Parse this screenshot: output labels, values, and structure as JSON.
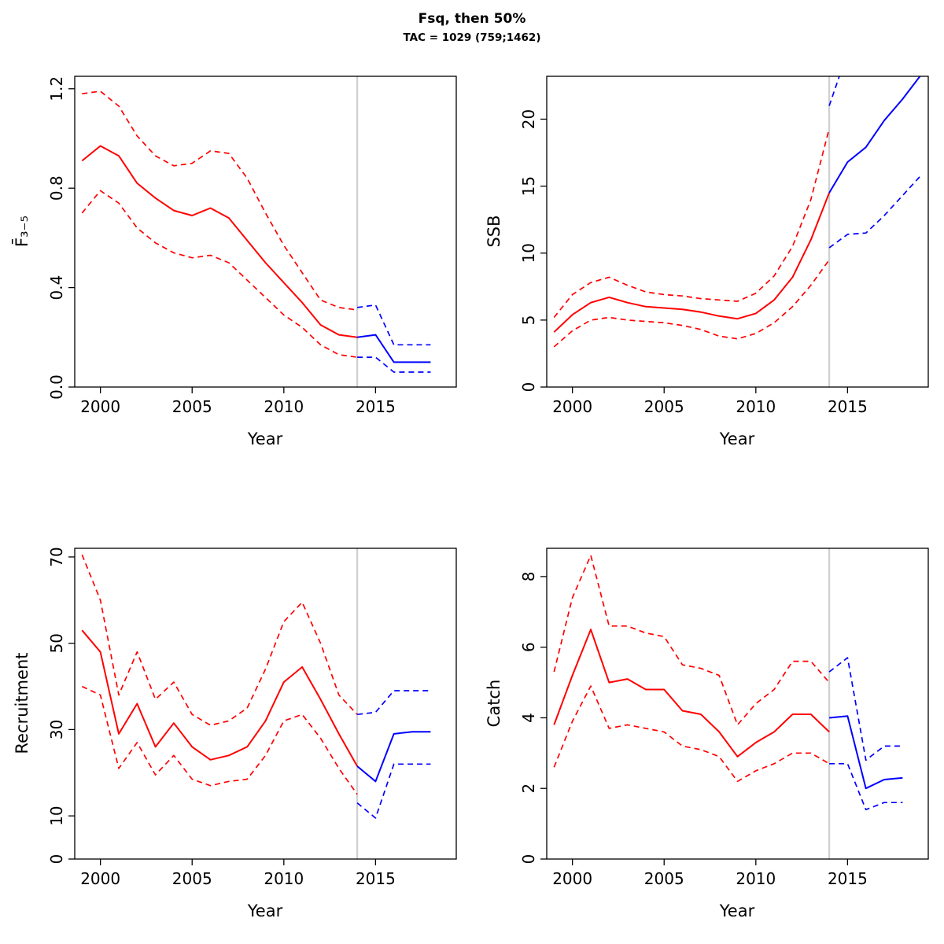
{
  "figure": {
    "title": "Fsq, then 50%",
    "subtitle": "TAC = 1029 (759;1462)"
  },
  "chart_data": [
    {
      "type": "line",
      "name": "fbar",
      "ylabel": "F̄₃₋₅",
      "xlabel": "Year",
      "xlim": [
        1998.6,
        2019.4
      ],
      "ylim": [
        0,
        1.25
      ],
      "xticks": [
        2000,
        2005,
        2010,
        2015
      ],
      "yticks": [
        0,
        0.4,
        0.8,
        1.2
      ],
      "ytick_labels": [
        "0.0",
        "0.4",
        "0.8",
        "1.2"
      ],
      "refline_x": 2014,
      "refline_color": "#CFCFCF",
      "grid": false,
      "legend": "none",
      "series": [
        {
          "name": "history-median",
          "color": "#FF0000",
          "dash": false,
          "x": [
            1999,
            2000,
            2001,
            2002,
            2003,
            2004,
            2005,
            2006,
            2007,
            2008,
            2009,
            2010,
            2011,
            2012,
            2013,
            2014
          ],
          "y": [
            0.91,
            0.97,
            0.93,
            0.82,
            0.76,
            0.71,
            0.69,
            0.72,
            0.68,
            0.59,
            0.5,
            0.42,
            0.34,
            0.25,
            0.21,
            0.2
          ]
        },
        {
          "name": "history-upper",
          "color": "#FF0000",
          "dash": true,
          "x": [
            1999,
            2000,
            2001,
            2002,
            2003,
            2004,
            2005,
            2006,
            2007,
            2008,
            2009,
            2010,
            2011,
            2012,
            2013,
            2014
          ],
          "y": [
            1.18,
            1.19,
            1.13,
            1.01,
            0.93,
            0.89,
            0.9,
            0.95,
            0.94,
            0.84,
            0.7,
            0.57,
            0.46,
            0.35,
            0.32,
            0.31
          ]
        },
        {
          "name": "history-lower",
          "color": "#FF0000",
          "dash": true,
          "x": [
            1999,
            2000,
            2001,
            2002,
            2003,
            2004,
            2005,
            2006,
            2007,
            2008,
            2009,
            2010,
            2011,
            2012,
            2013,
            2014
          ],
          "y": [
            0.7,
            0.79,
            0.74,
            0.64,
            0.58,
            0.54,
            0.52,
            0.53,
            0.5,
            0.43,
            0.36,
            0.29,
            0.24,
            0.17,
            0.13,
            0.12
          ]
        },
        {
          "name": "forecast-median",
          "color": "#0000FF",
          "dash": false,
          "x": [
            2014,
            2015,
            2016,
            2017,
            2018
          ],
          "y": [
            0.2,
            0.21,
            0.1,
            0.1,
            0.1
          ]
        },
        {
          "name": "forecast-upper",
          "color": "#0000FF",
          "dash": true,
          "x": [
            2014,
            2015,
            2016,
            2017,
            2018
          ],
          "y": [
            0.32,
            0.33,
            0.17,
            0.17,
            0.17
          ]
        },
        {
          "name": "forecast-lower",
          "color": "#0000FF",
          "dash": true,
          "x": [
            2014,
            2015,
            2016,
            2017,
            2018
          ],
          "y": [
            0.12,
            0.12,
            0.06,
            0.06,
            0.06
          ]
        }
      ]
    },
    {
      "type": "line",
      "name": "ssb",
      "ylabel": "SSB",
      "xlabel": "Year",
      "xlim": [
        1998.6,
        2019.4
      ],
      "ylim": [
        0,
        23.2
      ],
      "xticks": [
        2000,
        2005,
        2010,
        2015
      ],
      "yticks": [
        0,
        5,
        10,
        15,
        20
      ],
      "ytick_labels": [
        "0",
        "5",
        "10",
        "15",
        "20"
      ],
      "refline_x": 2014,
      "refline_color": "#CFCFCF",
      "grid": false,
      "legend": "none",
      "series": [
        {
          "name": "history-median",
          "color": "#FF0000",
          "dash": false,
          "x": [
            1999,
            2000,
            2001,
            2002,
            2003,
            2004,
            2005,
            2006,
            2007,
            2008,
            2009,
            2010,
            2011,
            2012,
            2013,
            2014
          ],
          "y": [
            4.1,
            5.4,
            6.3,
            6.7,
            6.3,
            6.0,
            5.9,
            5.8,
            5.6,
            5.3,
            5.1,
            5.5,
            6.5,
            8.2,
            11.0,
            14.5
          ]
        },
        {
          "name": "history-upper",
          "color": "#FF0000",
          "dash": true,
          "x": [
            1999,
            2000,
            2001,
            2002,
            2003,
            2004,
            2005,
            2006,
            2007,
            2008,
            2009,
            2010,
            2011,
            2012,
            2013,
            2014
          ],
          "y": [
            5.2,
            6.9,
            7.8,
            8.2,
            7.6,
            7.1,
            6.9,
            6.8,
            6.6,
            6.5,
            6.4,
            7.0,
            8.3,
            10.5,
            14.0,
            19.3
          ]
        },
        {
          "name": "history-lower",
          "color": "#FF0000",
          "dash": true,
          "x": [
            1999,
            2000,
            2001,
            2002,
            2003,
            2004,
            2005,
            2006,
            2007,
            2008,
            2009,
            2010,
            2011,
            2012,
            2013,
            2014
          ],
          "y": [
            3.0,
            4.2,
            5.0,
            5.2,
            5.0,
            4.9,
            4.8,
            4.6,
            4.3,
            3.8,
            3.6,
            4.0,
            4.8,
            6.0,
            7.6,
            9.5
          ]
        },
        {
          "name": "forecast-median",
          "color": "#0000FF",
          "dash": false,
          "x": [
            2014,
            2015,
            2016,
            2017,
            2018,
            2019
          ],
          "y": [
            14.5,
            16.8,
            17.9,
            19.9,
            21.5,
            23.3
          ]
        },
        {
          "name": "forecast-upper",
          "color": "#0000FF",
          "dash": true,
          "x": [
            2014,
            2015
          ],
          "y": [
            21.0,
            25.0
          ]
        },
        {
          "name": "forecast-lower",
          "color": "#0000FF",
          "dash": true,
          "x": [
            2014,
            2015,
            2016,
            2017,
            2018,
            2019
          ],
          "y": [
            10.4,
            11.4,
            11.5,
            12.8,
            14.3,
            15.8
          ]
        }
      ]
    },
    {
      "type": "line",
      "name": "recruitment",
      "ylabel": "Recruitment",
      "xlabel": "Year",
      "xlim": [
        1998.6,
        2019.4
      ],
      "ylim": [
        0,
        72
      ],
      "xticks": [
        2000,
        2005,
        2010,
        2015
      ],
      "yticks": [
        0,
        10,
        30,
        50,
        70
      ],
      "ytick_labels": [
        "0",
        "10",
        "30",
        "50",
        "70"
      ],
      "refline_x": 2014,
      "refline_color": "#CFCFCF",
      "grid": false,
      "legend": "none",
      "series": [
        {
          "name": "history-median",
          "color": "#FF0000",
          "dash": false,
          "x": [
            1999,
            2000,
            2001,
            2002,
            2003,
            2004,
            2005,
            2006,
            2007,
            2008,
            2009,
            2010,
            2011,
            2012,
            2013,
            2014
          ],
          "y": [
            53,
            48,
            29,
            36,
            26,
            31.5,
            26,
            23,
            24,
            26,
            32,
            41,
            44.5,
            37,
            29,
            21.5
          ]
        },
        {
          "name": "history-upper",
          "color": "#FF0000",
          "dash": true,
          "x": [
            1999,
            2000,
            2001,
            2002,
            2003,
            2004,
            2005,
            2006,
            2007,
            2008,
            2009,
            2010,
            2011,
            2012,
            2013,
            2014
          ],
          "y": [
            70.5,
            60,
            38,
            48,
            37,
            41,
            33.5,
            31,
            32,
            35,
            44,
            55,
            59.5,
            50,
            38,
            33.5
          ]
        },
        {
          "name": "history-lower",
          "color": "#FF0000",
          "dash": true,
          "x": [
            1999,
            2000,
            2001,
            2002,
            2003,
            2004,
            2005,
            2006,
            2007,
            2008,
            2009,
            2010,
            2011,
            2012,
            2013,
            2014
          ],
          "y": [
            40,
            38,
            21,
            27,
            19.5,
            24,
            18.5,
            17,
            18,
            18.5,
            24,
            32,
            33.5,
            28,
            21,
            15
          ]
        },
        {
          "name": "forecast-median",
          "color": "#0000FF",
          "dash": false,
          "x": [
            2014,
            2015,
            2016,
            2017,
            2018
          ],
          "y": [
            21.5,
            18,
            29,
            29.5,
            29.5
          ]
        },
        {
          "name": "forecast-upper",
          "color": "#0000FF",
          "dash": true,
          "x": [
            2014,
            2015,
            2016,
            2017,
            2018
          ],
          "y": [
            33.5,
            34,
            39,
            39,
            39
          ]
        },
        {
          "name": "forecast-lower",
          "color": "#0000FF",
          "dash": true,
          "x": [
            2014,
            2015,
            2016,
            2017,
            2018
          ],
          "y": [
            13,
            9.5,
            22,
            22,
            22
          ]
        }
      ]
    },
    {
      "type": "line",
      "name": "catch",
      "ylabel": "Catch",
      "xlabel": "Year",
      "xlim": [
        1998.6,
        2019.4
      ],
      "ylim": [
        0,
        8.8
      ],
      "xticks": [
        2000,
        2005,
        2010,
        2015
      ],
      "yticks": [
        0,
        2,
        4,
        6,
        8
      ],
      "ytick_labels": [
        "0",
        "2",
        "4",
        "6",
        "8"
      ],
      "refline_x": 2014,
      "refline_color": "#CFCFCF",
      "grid": false,
      "legend": "none",
      "series": [
        {
          "name": "history-median",
          "color": "#FF0000",
          "dash": false,
          "x": [
            1999,
            2000,
            2001,
            2002,
            2003,
            2004,
            2005,
            2006,
            2007,
            2008,
            2009,
            2010,
            2011,
            2012,
            2013,
            2014
          ],
          "y": [
            3.8,
            5.2,
            6.5,
            5.0,
            5.1,
            4.8,
            4.8,
            4.2,
            4.1,
            3.6,
            2.9,
            3.3,
            3.6,
            4.1,
            4.1,
            3.6
          ]
        },
        {
          "name": "history-upper",
          "color": "#FF0000",
          "dash": true,
          "x": [
            1999,
            2000,
            2001,
            2002,
            2003,
            2004,
            2005,
            2006,
            2007,
            2008,
            2009,
            2010,
            2011,
            2012,
            2013,
            2014
          ],
          "y": [
            5.3,
            7.4,
            8.6,
            6.6,
            6.6,
            6.4,
            6.3,
            5.5,
            5.4,
            5.2,
            3.8,
            4.4,
            4.8,
            5.6,
            5.6,
            5.0
          ]
        },
        {
          "name": "history-lower",
          "color": "#FF0000",
          "dash": true,
          "x": [
            1999,
            2000,
            2001,
            2002,
            2003,
            2004,
            2005,
            2006,
            2007,
            2008,
            2009,
            2010,
            2011,
            2012,
            2013,
            2014
          ],
          "y": [
            2.6,
            3.9,
            4.9,
            3.7,
            3.8,
            3.7,
            3.6,
            3.2,
            3.1,
            2.9,
            2.2,
            2.5,
            2.7,
            3.0,
            3.0,
            2.7
          ]
        },
        {
          "name": "forecast-median",
          "color": "#0000FF",
          "dash": false,
          "x": [
            2014,
            2015,
            2016,
            2017,
            2018
          ],
          "y": [
            4.0,
            4.05,
            2.0,
            2.25,
            2.3
          ]
        },
        {
          "name": "forecast-upper",
          "color": "#0000FF",
          "dash": true,
          "x": [
            2014,
            2015,
            2016,
            2017,
            2018
          ],
          "y": [
            5.3,
            5.7,
            2.8,
            3.2,
            3.2
          ]
        },
        {
          "name": "forecast-lower",
          "color": "#0000FF",
          "dash": true,
          "x": [
            2014,
            2015,
            2016,
            2017,
            2018
          ],
          "y": [
            2.7,
            2.7,
            1.4,
            1.6,
            1.6
          ]
        }
      ]
    }
  ]
}
